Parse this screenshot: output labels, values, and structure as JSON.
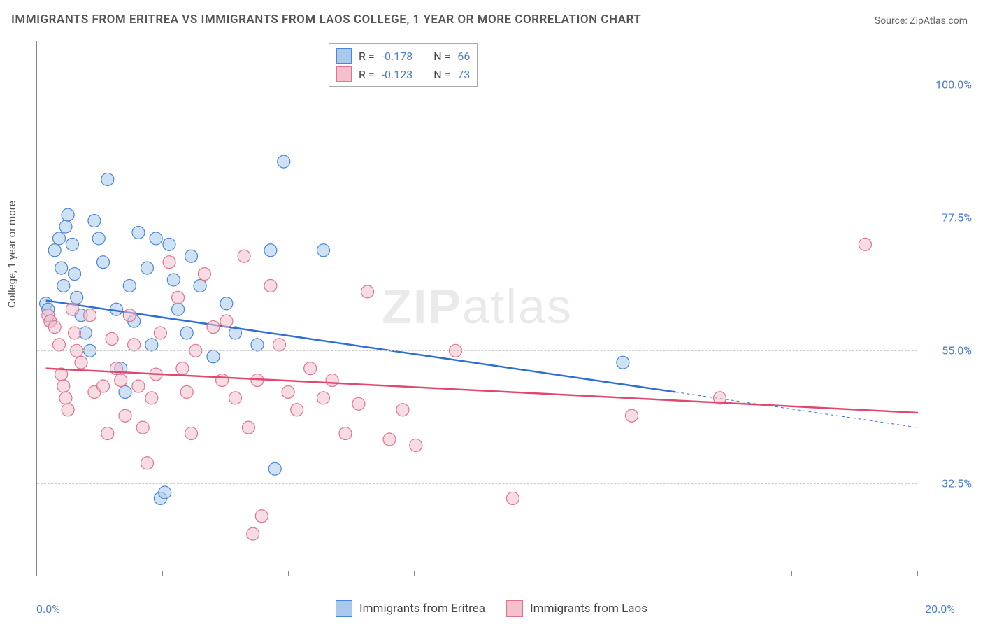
{
  "title": "IMMIGRANTS FROM ERITREA VS IMMIGRANTS FROM LAOS COLLEGE, 1 YEAR OR MORE CORRELATION CHART",
  "source": "Source: ZipAtlas.com",
  "ylabel": "College, 1 year or more",
  "watermark_bold": "ZIP",
  "watermark_rest": "atlas",
  "chart": {
    "type": "scatter",
    "xlim": [
      0,
      20
    ],
    "ylim": [
      17.5,
      107.5
    ],
    "xtick_labels": [
      "0.0%",
      "20.0%"
    ],
    "xtick_positions": [
      0,
      2.86,
      5.71,
      8.57,
      11.43,
      14.29,
      17.14,
      20
    ],
    "ytick_labels": [
      "32.5%",
      "55.0%",
      "77.5%",
      "100.0%"
    ],
    "ytick_positions": [
      32.5,
      55.0,
      77.5,
      100.0
    ],
    "grid_color": "#cccccc",
    "axis_color": "#888888",
    "label_color": "#4a7fd6",
    "marker_radius": 9,
    "marker_opacity": 0.55,
    "line_width": 2.5,
    "series": [
      {
        "name": "Immigrants from Eritrea",
        "color_fill": "#a8c8ec",
        "color_stroke": "#4a86d8",
        "line_color": "#2e6fd0",
        "R": "-0.178",
        "N": "66",
        "trend": {
          "x1": 0.2,
          "y1": 63.5,
          "x2": 14.5,
          "y2": 48.0,
          "dash_to_x": 20.0,
          "dash_to_y": 42.0
        },
        "points": [
          [
            0.2,
            63
          ],
          [
            0.25,
            62
          ],
          [
            0.3,
            60
          ],
          [
            0.4,
            72
          ],
          [
            0.5,
            74
          ],
          [
            0.55,
            69
          ],
          [
            0.6,
            66
          ],
          [
            0.65,
            76
          ],
          [
            0.7,
            78
          ],
          [
            0.8,
            73
          ],
          [
            0.85,
            68
          ],
          [
            0.9,
            64
          ],
          [
            1.0,
            61
          ],
          [
            1.1,
            58
          ],
          [
            1.2,
            55
          ],
          [
            1.3,
            77
          ],
          [
            1.4,
            74
          ],
          [
            1.5,
            70
          ],
          [
            1.6,
            84
          ],
          [
            1.8,
            62
          ],
          [
            1.9,
            52
          ],
          [
            2.0,
            48
          ],
          [
            2.1,
            66
          ],
          [
            2.2,
            60
          ],
          [
            2.3,
            75
          ],
          [
            2.5,
            69
          ],
          [
            2.6,
            56
          ],
          [
            2.7,
            74
          ],
          [
            2.8,
            30
          ],
          [
            2.9,
            31
          ],
          [
            3.0,
            73
          ],
          [
            3.1,
            67
          ],
          [
            3.2,
            62
          ],
          [
            3.4,
            58
          ],
          [
            3.5,
            71
          ],
          [
            3.7,
            66
          ],
          [
            4.0,
            54
          ],
          [
            4.3,
            63
          ],
          [
            4.5,
            58
          ],
          [
            5.0,
            56
          ],
          [
            5.3,
            72
          ],
          [
            5.4,
            35
          ],
          [
            5.6,
            87
          ],
          [
            6.5,
            72
          ],
          [
            13.3,
            53
          ]
        ]
      },
      {
        "name": "Immigrants from Laos",
        "color_fill": "#f3c0cc",
        "color_stroke": "#e1728f",
        "line_color": "#e0486e",
        "R": "-0.123",
        "N": "73",
        "trend": {
          "x1": 0.2,
          "y1": 52.0,
          "x2": 20.0,
          "y2": 44.5,
          "dash_to_x": 20.0,
          "dash_to_y": 44.5
        },
        "points": [
          [
            0.25,
            61
          ],
          [
            0.3,
            60
          ],
          [
            0.4,
            59
          ],
          [
            0.5,
            56
          ],
          [
            0.55,
            51
          ],
          [
            0.6,
            49
          ],
          [
            0.65,
            47
          ],
          [
            0.7,
            45
          ],
          [
            0.8,
            62
          ],
          [
            0.85,
            58
          ],
          [
            0.9,
            55
          ],
          [
            1.0,
            53
          ],
          [
            1.2,
            61
          ],
          [
            1.3,
            48
          ],
          [
            1.5,
            49
          ],
          [
            1.6,
            41
          ],
          [
            1.7,
            57
          ],
          [
            1.8,
            52
          ],
          [
            1.9,
            50
          ],
          [
            2.0,
            44
          ],
          [
            2.1,
            61
          ],
          [
            2.2,
            56
          ],
          [
            2.3,
            49
          ],
          [
            2.4,
            42
          ],
          [
            2.5,
            36
          ],
          [
            2.6,
            47
          ],
          [
            2.7,
            51
          ],
          [
            2.8,
            58
          ],
          [
            3.0,
            70
          ],
          [
            3.2,
            64
          ],
          [
            3.3,
            52
          ],
          [
            3.4,
            48
          ],
          [
            3.5,
            41
          ],
          [
            3.6,
            55
          ],
          [
            3.8,
            68
          ],
          [
            4.0,
            59
          ],
          [
            4.2,
            50
          ],
          [
            4.3,
            60
          ],
          [
            4.5,
            47
          ],
          [
            4.7,
            71
          ],
          [
            4.8,
            42
          ],
          [
            4.9,
            24
          ],
          [
            5.0,
            50
          ],
          [
            5.1,
            27
          ],
          [
            5.3,
            66
          ],
          [
            5.5,
            56
          ],
          [
            5.7,
            48
          ],
          [
            5.9,
            45
          ],
          [
            6.2,
            52
          ],
          [
            6.5,
            47
          ],
          [
            6.7,
            50
          ],
          [
            7.0,
            41
          ],
          [
            7.3,
            46
          ],
          [
            7.5,
            65
          ],
          [
            8.0,
            40
          ],
          [
            8.3,
            45
          ],
          [
            8.6,
            39
          ],
          [
            9.5,
            55
          ],
          [
            10.8,
            30
          ],
          [
            13.5,
            44
          ],
          [
            15.5,
            47
          ],
          [
            18.8,
            73
          ]
        ]
      }
    ]
  },
  "legend": {
    "items": [
      {
        "label": "Immigrants from Eritrea",
        "fill": "#a8c8ec",
        "stroke": "#4a86d8"
      },
      {
        "label": "Immigrants from Laos",
        "fill": "#f3c0cc",
        "stroke": "#e1728f"
      }
    ]
  }
}
